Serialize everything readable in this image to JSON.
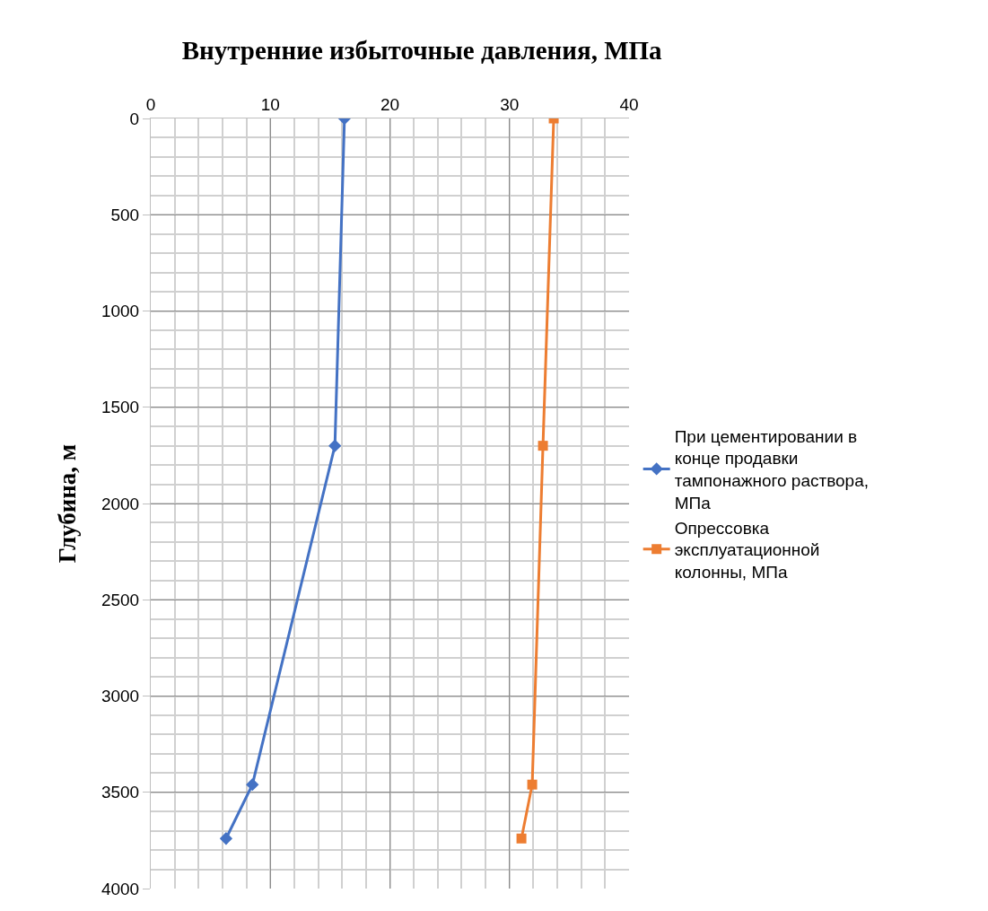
{
  "chart_data": {
    "type": "line",
    "title": "Внутренние избыточные давления, МПа",
    "ylabel": "Глубина, м",
    "xlim": [
      0,
      40
    ],
    "xticks": [
      0,
      10,
      20,
      30,
      40
    ],
    "ylim": [
      4000,
      0
    ],
    "yticks": [
      0,
      500,
      1000,
      1500,
      2000,
      2500,
      3000,
      3500,
      4000
    ],
    "grid": true,
    "legend": "right",
    "line_style": "solid",
    "series": [
      {
        "name": "При цементировании в конце продавки тампонажного раствора, МПа",
        "color": "#4472c4",
        "marker": "diamond",
        "x": [
          16.2,
          15.4,
          8.5,
          6.3
        ],
        "values": [
          0,
          1700,
          3460,
          3740
        ]
      },
      {
        "name": "Опрессовка эксплуатационной колонны, МПа",
        "color": "#ed7d31",
        "marker": "square",
        "x": [
          33.7,
          32.8,
          31.9,
          31.0
        ],
        "values": [
          0,
          1700,
          3460,
          3740
        ]
      }
    ]
  }
}
